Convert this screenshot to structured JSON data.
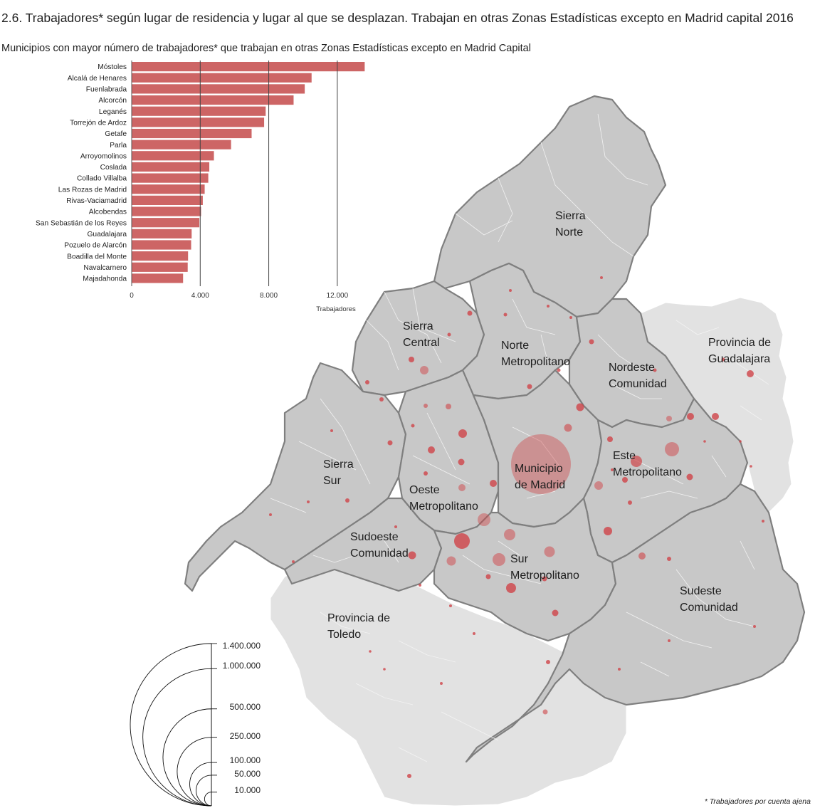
{
  "title": "2.6. Trabajadores* según lugar de residencia y lugar al que se desplazan. Trabajan en otras Zonas Estadísticas excepto en Madrid capital 2016",
  "footnote": "* Trabajadores por cuenta ajena",
  "colors": {
    "bar": "#cd6565",
    "zone": "#c8c8c8",
    "zone_border": "#808080",
    "province": "#e2e2e2",
    "bubble": "#cf4448"
  },
  "chart_data": {
    "type": "bar",
    "orientation": "horizontal",
    "title": "Municipios con mayor número de trabajadores* que trabajan en otras Zonas Estadísticas excepto en Madrid Capital",
    "xlabel": "Trabajadores",
    "xlim": [
      0,
      14000
    ],
    "xticks": [
      "0",
      "4.000",
      "8.000",
      "12.000"
    ],
    "xtick_values": [
      0,
      4000,
      8000,
      12000
    ],
    "grid": "vertical",
    "categories": [
      "Móstoles",
      "Alcalá de Henares",
      "Fuenlabrada",
      "Alcorcón",
      "Leganés",
      "Torrejón de Ardoz",
      "Getafe",
      "Parla",
      "Arroyomolinos",
      "Coslada",
      "Collado Villalba",
      "Las Rozas de Madrid",
      "Rivas-Vaciamadrid",
      "Alcobendas",
      "San Sebastián de los Reyes",
      "Guadalajara",
      "Pozuelo de Alarcón",
      "Boadilla del Monte",
      "Navalcarnero",
      "Majadahonda"
    ],
    "values": [
      13600,
      10500,
      10100,
      9450,
      7820,
      7730,
      7000,
      5800,
      4800,
      4530,
      4470,
      4260,
      4150,
      4050,
      3950,
      3500,
      3470,
      3290,
      3270,
      3000
    ]
  },
  "map": {
    "zones": [
      {
        "id": "sierra-norte",
        "name": "Sierra\nNorte"
      },
      {
        "id": "sierra-central",
        "name": "Sierra\nCentral"
      },
      {
        "id": "norte-metropolitano",
        "name": "Norte\nMetropolitano"
      },
      {
        "id": "nordeste-comunidad",
        "name": "Nordeste\nComunidad"
      },
      {
        "id": "sierra-sur",
        "name": "Sierra\nSur"
      },
      {
        "id": "oeste-metropolitano",
        "name": "Oeste\nMetropolitano"
      },
      {
        "id": "municipio-madrid",
        "name": "Municipio\nde Madrid"
      },
      {
        "id": "este-metropolitano",
        "name": "Este\nMetropolitano"
      },
      {
        "id": "sudoeste-comunidad",
        "name": "Sudoeste\nComunidad"
      },
      {
        "id": "sur-metropolitano",
        "name": "Sur\nMetropolitano"
      },
      {
        "id": "sudeste-comunidad",
        "name": "Sudeste\nComunidad"
      }
    ],
    "provinces": [
      {
        "id": "guadalajara",
        "name": "Provincia de\nGuadalajara"
      },
      {
        "id": "toledo",
        "name": "Provincia de\nToledo"
      }
    ]
  },
  "legend": {
    "labels": [
      "1.400.000",
      "1.000.000",
      "500.000",
      "250.000",
      "100.000",
      "50.000",
      "10.000"
    ],
    "values": [
      1400000,
      1000000,
      500000,
      250000,
      100000,
      50000,
      10000
    ]
  }
}
